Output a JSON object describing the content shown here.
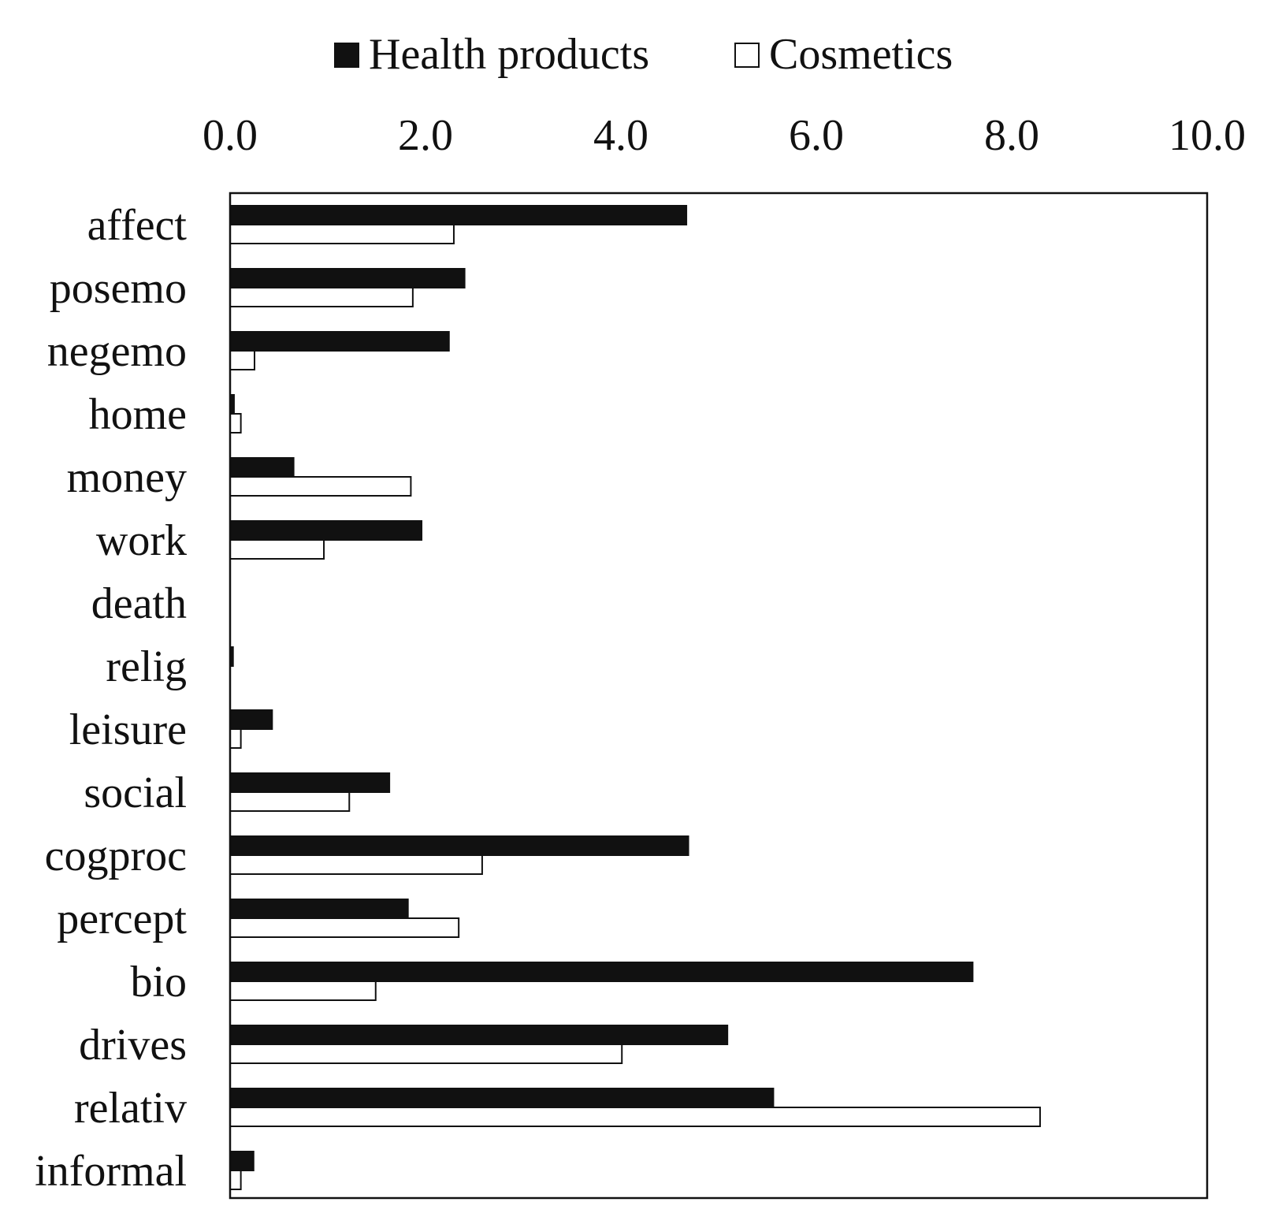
{
  "colors": {
    "health": "#111111",
    "cosmetics": "#ffffff",
    "stroke": "#111111"
  },
  "chart_data": {
    "type": "bar",
    "orientation": "horizontal",
    "categories": [
      "affect",
      "posemo",
      "negemo",
      "home",
      "money",
      "work",
      "death",
      "relig",
      "leisure",
      "social",
      "cogproc",
      "percept",
      "bio",
      "drives",
      "relativ",
      "informal"
    ],
    "series": [
      {
        "name": "Health products",
        "values": [
          4.67,
          2.4,
          2.24,
          0.04,
          0.65,
          1.96,
          0.0,
          0.03,
          0.43,
          1.63,
          4.69,
          1.82,
          7.6,
          5.09,
          5.56,
          0.24
        ]
      },
      {
        "name": "Cosmetics",
        "values": [
          2.29,
          1.87,
          0.25,
          0.11,
          1.85,
          0.96,
          0.0,
          0.0,
          0.11,
          1.22,
          2.58,
          2.34,
          1.49,
          4.01,
          8.29,
          0.11
        ]
      }
    ],
    "x_ticks": [
      "0.0",
      "2.0",
      "4.0",
      "6.0",
      "8.0",
      "10.0"
    ],
    "xlim": [
      0,
      10
    ],
    "x_axis_position": "top",
    "legend_position": "top-center",
    "grid": false,
    "title": "",
    "xlabel": "",
    "ylabel": ""
  }
}
